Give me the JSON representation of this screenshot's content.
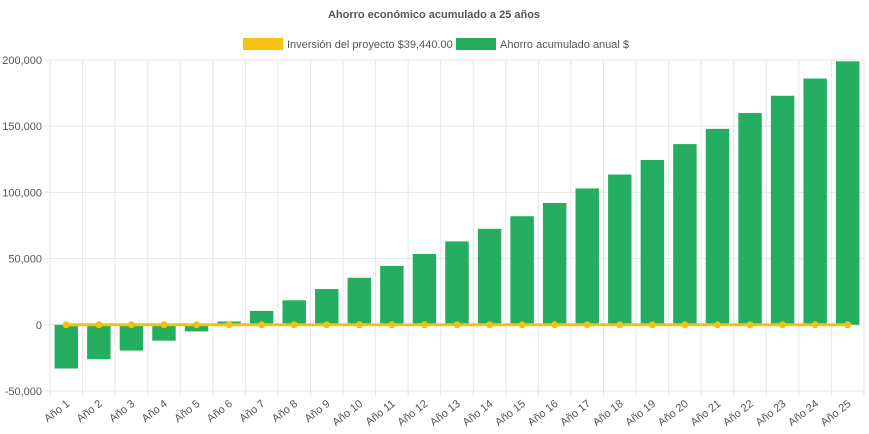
{
  "chart_data": {
    "type": "bar",
    "title": "Ahorro económico acumulado a 25 años",
    "categories": [
      "Año 1",
      "Año 2",
      "Año 3",
      "Año 4",
      "Año 5",
      "Año 6",
      "Año 7",
      "Año 8",
      "Año 9",
      "Año 10",
      "Año 11",
      "Año 12",
      "Año 13",
      "Año 14",
      "Año 15",
      "Año 16",
      "Año 17",
      "Año 18",
      "Año 19",
      "Año 20",
      "Año 21",
      "Año 22",
      "Año 23",
      "Año 24",
      "Año 25"
    ],
    "series": [
      {
        "name": "Inversión del proyecto $39,440.00",
        "type": "line",
        "color": "#f5c211",
        "values": [
          0,
          0,
          0,
          0,
          0,
          0,
          0,
          0,
          0,
          0,
          0,
          0,
          0,
          0,
          0,
          0,
          0,
          0,
          0,
          0,
          0,
          0,
          0,
          0,
          0
        ]
      },
      {
        "name": "Ahorro acumulado anual $",
        "type": "bar",
        "color": "#26ae60",
        "values": [
          -33000,
          -26000,
          -19500,
          -12000,
          -5000,
          2500,
          10500,
          18500,
          27000,
          35500,
          44500,
          53500,
          63000,
          72500,
          82000,
          92000,
          103000,
          113500,
          124500,
          136500,
          148000,
          160000,
          173000,
          186000,
          199000
        ]
      }
    ],
    "yticks": [
      "200,000",
      "150,000",
      "100,000",
      "50,000",
      "0",
      "-50,000"
    ],
    "ylim": [
      -50000,
      200000
    ],
    "grid": true,
    "legend": "top-center"
  }
}
